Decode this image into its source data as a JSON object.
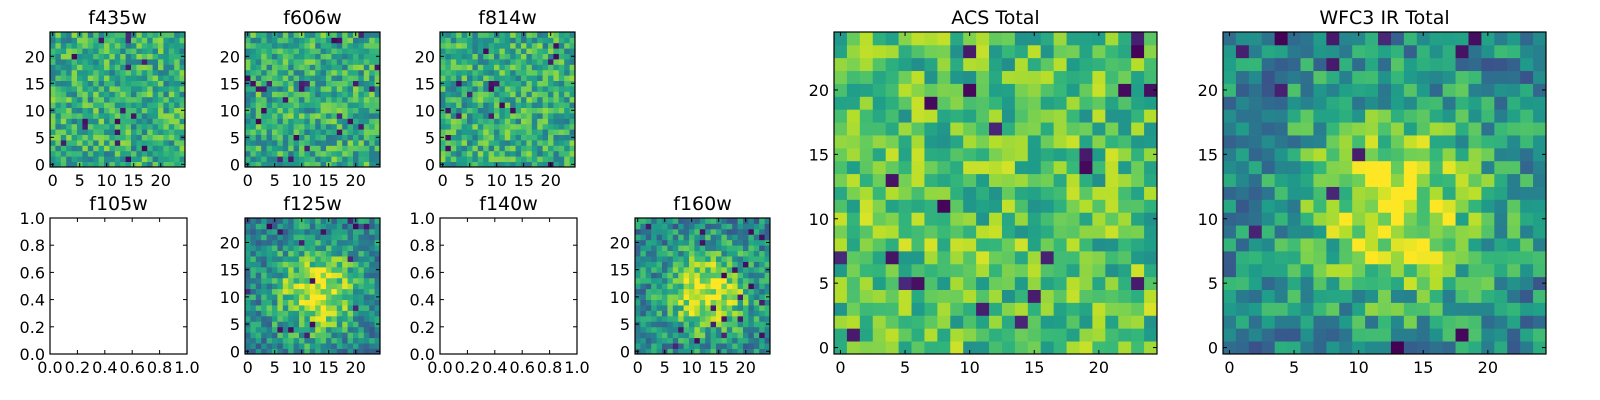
{
  "chart_data": [
    {
      "id": "f435w",
      "type": "heatmap",
      "title": "f435w",
      "empty": false,
      "xlim": [
        -0.5,
        24.5
      ],
      "ylim": [
        -0.5,
        24.5
      ],
      "xticks": [
        0,
        5,
        10,
        15,
        20
      ],
      "yticks": [
        0,
        5,
        10,
        15,
        20
      ],
      "colormap": "viridis",
      "pixel_grid": [
        25,
        25
      ],
      "seed": 11,
      "structure": "noise"
    },
    {
      "id": "f606w",
      "type": "heatmap",
      "title": "f606w",
      "empty": false,
      "xlim": [
        -0.5,
        24.5
      ],
      "ylim": [
        -0.5,
        24.5
      ],
      "xticks": [
        0,
        5,
        10,
        15,
        20
      ],
      "yticks": [
        0,
        5,
        10,
        15,
        20
      ],
      "colormap": "viridis",
      "pixel_grid": [
        25,
        25
      ],
      "seed": 23,
      "structure": "noise"
    },
    {
      "id": "f814w",
      "type": "heatmap",
      "title": "f814w",
      "empty": false,
      "xlim": [
        -0.5,
        24.5
      ],
      "ylim": [
        -0.5,
        24.5
      ],
      "xticks": [
        0,
        5,
        10,
        15,
        20
      ],
      "yticks": [
        0,
        5,
        10,
        15,
        20
      ],
      "colormap": "viridis",
      "pixel_grid": [
        25,
        25
      ],
      "seed": 37,
      "structure": "noise"
    },
    {
      "id": "f105w",
      "type": "heatmap",
      "title": "f105w",
      "empty": true,
      "xlim": [
        0,
        1
      ],
      "ylim": [
        0,
        1
      ],
      "xticks": [
        "0.0",
        "0.2",
        "0.4",
        "0.6",
        "0.8",
        "1.0"
      ],
      "yticks": [
        "0.0",
        "0.2",
        "0.4",
        "0.6",
        "0.8",
        "1.0"
      ]
    },
    {
      "id": "f125w",
      "type": "heatmap",
      "title": "f125w",
      "empty": false,
      "xlim": [
        -0.5,
        24.5
      ],
      "ylim": [
        -0.5,
        24.5
      ],
      "xticks": [
        0,
        5,
        10,
        15,
        20
      ],
      "yticks": [
        0,
        5,
        10,
        15,
        20
      ],
      "colormap": "viridis",
      "pixel_grid": [
        25,
        25
      ],
      "seed": 53,
      "structure": "blob"
    },
    {
      "id": "f140w",
      "type": "heatmap",
      "title": "f140w",
      "empty": true,
      "xlim": [
        0,
        1
      ],
      "ylim": [
        0,
        1
      ],
      "xticks": [
        "0.0",
        "0.2",
        "0.4",
        "0.6",
        "0.8",
        "1.0"
      ],
      "yticks": [
        "0.0",
        "0.2",
        "0.4",
        "0.6",
        "0.8",
        "1.0"
      ]
    },
    {
      "id": "f160w",
      "type": "heatmap",
      "title": "f160w",
      "empty": false,
      "xlim": [
        -0.5,
        24.5
      ],
      "ylim": [
        -0.5,
        24.5
      ],
      "xticks": [
        0,
        5,
        10,
        15,
        20
      ],
      "yticks": [
        0,
        5,
        10,
        15,
        20
      ],
      "colormap": "viridis",
      "pixel_grid": [
        25,
        25
      ],
      "seed": 71,
      "structure": "blob"
    },
    {
      "id": "acs-total",
      "type": "heatmap",
      "title": "ACS Total",
      "empty": false,
      "xlim": [
        -0.5,
        24.5
      ],
      "ylim": [
        -0.5,
        24.5
      ],
      "xticks": [
        0,
        5,
        10,
        15,
        20
      ],
      "yticks": [
        0,
        5,
        10,
        15,
        20
      ],
      "colormap": "viridis",
      "pixel_grid": [
        25,
        25
      ],
      "seed": 89,
      "structure": "flat"
    },
    {
      "id": "wfc3-ir-total",
      "type": "heatmap",
      "title": "WFC3 IR Total",
      "empty": false,
      "xlim": [
        -0.5,
        24.5
      ],
      "ylim": [
        -0.5,
        24.5
      ],
      "xticks": [
        0,
        5,
        10,
        15,
        20
      ],
      "yticks": [
        0,
        5,
        10,
        15,
        20
      ],
      "colormap": "viridis",
      "pixel_grid": [
        25,
        25
      ],
      "seed": 97,
      "structure": "blob"
    }
  ]
}
